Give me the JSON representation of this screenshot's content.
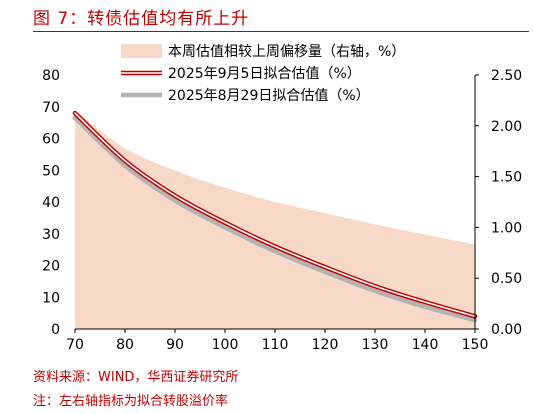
{
  "figure": {
    "title": "图 7：转债估值均有所上升",
    "source": "资料来源：WIND，华西证券研究所",
    "note": "注：左右轴指标为拟合转股溢价率"
  },
  "chart_data": {
    "type": "line",
    "x": [
      70,
      80,
      90,
      100,
      110,
      120,
      130,
      140,
      150
    ],
    "xlim": [
      70,
      150
    ],
    "ylim_left": [
      0,
      80
    ],
    "ylim_right": [
      0,
      2.5
    ],
    "xticks": [
      "70",
      "80",
      "90",
      "100",
      "110",
      "120",
      "130",
      "140",
      "150"
    ],
    "yticks_left": [
      "0",
      "10",
      "20",
      "30",
      "40",
      "50",
      "60",
      "70",
      "80"
    ],
    "yticks_right": [
      "0.00",
      "0.50",
      "1.00",
      "1.50",
      "2.00",
      "2.50"
    ],
    "grid": false,
    "legend_position": "top",
    "series": [
      {
        "name": "本周估值相较上周偏移量（右轴，%）",
        "kind": "area",
        "axis": "right",
        "color": "#f8d9c7",
        "values": [
          2.15,
          1.78,
          1.56,
          1.39,
          1.25,
          1.14,
          1.03,
          0.93,
          0.83
        ]
      },
      {
        "name": "2025年9月5日拟合估值（%）",
        "kind": "line",
        "axis": "left",
        "color": "#c00000",
        "values": [
          68,
          53,
          42,
          33.5,
          26,
          19.5,
          13.5,
          8.5,
          4
        ]
      },
      {
        "name": "2025年8月29日拟合估值（%）",
        "kind": "line",
        "axis": "left",
        "color": "#b3b3b3",
        "values": [
          66.5,
          51.5,
          40.5,
          32,
          24.5,
          18,
          12,
          7,
          2.8
        ]
      }
    ]
  }
}
